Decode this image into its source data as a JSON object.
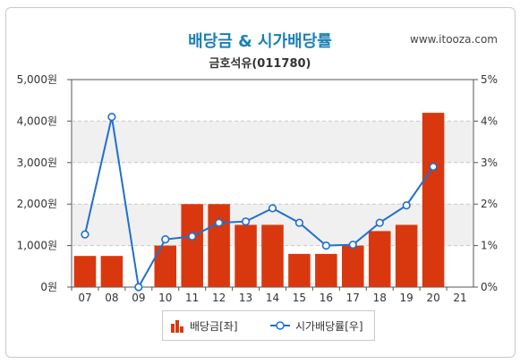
{
  "header": {
    "title": "배당금 & 시가배당률",
    "subtitle": "금호석유(011780)",
    "source": "www.itooza.com"
  },
  "legend": {
    "bar_label": "배당금[좌]",
    "line_label": "시가배당률[우]"
  },
  "colors": {
    "bar": "#d9380f",
    "line": "#1f6fd1",
    "title": "#1a7fb5"
  },
  "chart_data": {
    "type": "bar",
    "categories": [
      "07",
      "08",
      "09",
      "10",
      "11",
      "12",
      "13",
      "14",
      "15",
      "16",
      "17",
      "18",
      "19",
      "20",
      "21"
    ],
    "series": [
      {
        "name": "배당금[좌]",
        "type": "bar",
        "axis": "left",
        "values": [
          750,
          750,
          0,
          1000,
          2000,
          2000,
          1500,
          1500,
          800,
          800,
          1000,
          1350,
          1500,
          4200,
          null
        ]
      },
      {
        "name": "시가배당률[우]",
        "type": "line",
        "axis": "right",
        "values": [
          1.27,
          4.1,
          0.0,
          1.15,
          1.22,
          1.55,
          1.58,
          1.9,
          1.55,
          1.0,
          1.02,
          1.55,
          1.97,
          2.9,
          null
        ]
      }
    ],
    "y_left": {
      "ylim": [
        0,
        5000
      ],
      "ticks": [
        0,
        1000,
        2000,
        3000,
        4000,
        5000
      ],
      "tick_labels": [
        "0원",
        "1,000원",
        "2,000원",
        "3,000원",
        "4,000원",
        "5,000원"
      ]
    },
    "y_right": {
      "ylim": [
        0,
        5
      ],
      "ticks": [
        0,
        1,
        2,
        3,
        4,
        5
      ],
      "tick_labels": [
        "0%",
        "1%",
        "2%",
        "3%",
        "4%",
        "5%"
      ]
    },
    "grid": true,
    "legend_position": "bottom"
  }
}
